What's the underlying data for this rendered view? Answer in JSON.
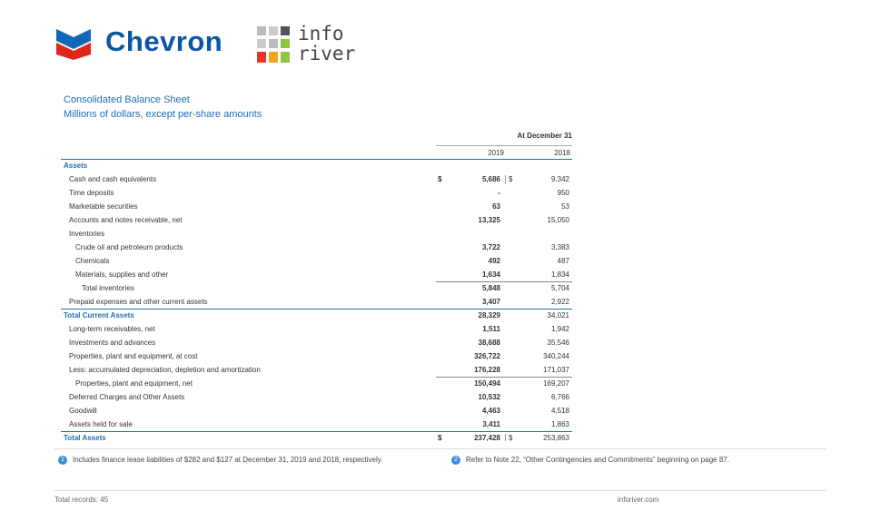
{
  "header": {
    "brand": "Chevron",
    "partner": [
      "info",
      "river"
    ]
  },
  "report": {
    "title": "Consolidated Balance Sheet",
    "subtitle": "Millions of dollars, except per-share amounts",
    "period_header": "At December 31",
    "columns": [
      "2019",
      "2018"
    ],
    "rows": [
      {
        "label": "Assets",
        "indent": 0,
        "section": true
      },
      {
        "label": "Cash and cash equivalents",
        "indent": 1,
        "currency": [
          "$",
          "$"
        ],
        "values": [
          "5,686",
          "9,342"
        ]
      },
      {
        "label": "Time deposits",
        "indent": 1,
        "values": [
          "-",
          "950"
        ]
      },
      {
        "label": "Marketable securities",
        "indent": 1,
        "values": [
          "63",
          "53"
        ]
      },
      {
        "label": "Accounts and notes receivable, net",
        "indent": 1,
        "values": [
          "13,325",
          "15,050"
        ]
      },
      {
        "label": "Inventories",
        "indent": 1
      },
      {
        "label": "Crude oil and petroleum products",
        "indent": 2,
        "values": [
          "3,722",
          "3,383"
        ]
      },
      {
        "label": "Chemicals",
        "indent": 2,
        "values": [
          "492",
          "487"
        ]
      },
      {
        "label": "Materials, supplies and other",
        "indent": 2,
        "values": [
          "1,634",
          "1,834"
        ]
      },
      {
        "label": "Total inventories",
        "indent": 3,
        "rule": "values",
        "values": [
          "5,848",
          "5,704"
        ]
      },
      {
        "label": "Prepaid expenses and other current assets",
        "indent": 1,
        "values": [
          "3,407",
          "2,922"
        ]
      },
      {
        "label": "Total Current Assets",
        "indent": 0,
        "section": true,
        "rule": "row",
        "values": [
          "28,329",
          "34,021"
        ]
      },
      {
        "label": "Long-term receivables, net",
        "indent": 1,
        "values": [
          "1,511",
          "1,942"
        ]
      },
      {
        "label": "Investments and advances",
        "indent": 1,
        "values": [
          "38,688",
          "35,546"
        ]
      },
      {
        "label": "Properties, plant and equipment, at cost",
        "indent": 1,
        "values": [
          "326,722",
          "340,244"
        ]
      },
      {
        "label": "Less: accumulated depreciation, depletion and amortization",
        "indent": 1,
        "values": [
          "176,228",
          "171,037"
        ]
      },
      {
        "label": "Properties, plant and equipment, net",
        "indent": 2,
        "rule": "values",
        "values": [
          "150,494",
          "169,207"
        ]
      },
      {
        "label": "Deferred Charges and Other Assets",
        "indent": 1,
        "values": [
          "10,532",
          "6,766"
        ]
      },
      {
        "label": "Goodwill",
        "indent": 1,
        "values": [
          "4,463",
          "4,518"
        ]
      },
      {
        "label": "Assets held for sale",
        "indent": 1,
        "values": [
          "3,411",
          "1,863"
        ]
      },
      {
        "label": "Total Assets",
        "indent": 0,
        "section": true,
        "rule": "row",
        "currency": [
          "$",
          "$"
        ],
        "values": [
          "237,428",
          "253,863"
        ]
      }
    ]
  },
  "footnotes": [
    {
      "number": "1",
      "text": "Includes finance lease liabilities of $282 and $127 at December 31, 2019 and 2018, respectively."
    },
    {
      "number": "2",
      "text": "Refer to Note 22, “Other Contingencies and Commitments” beginning on page 87."
    }
  ],
  "footer": {
    "records": "Total records: 45",
    "site": "inforiver.com"
  }
}
